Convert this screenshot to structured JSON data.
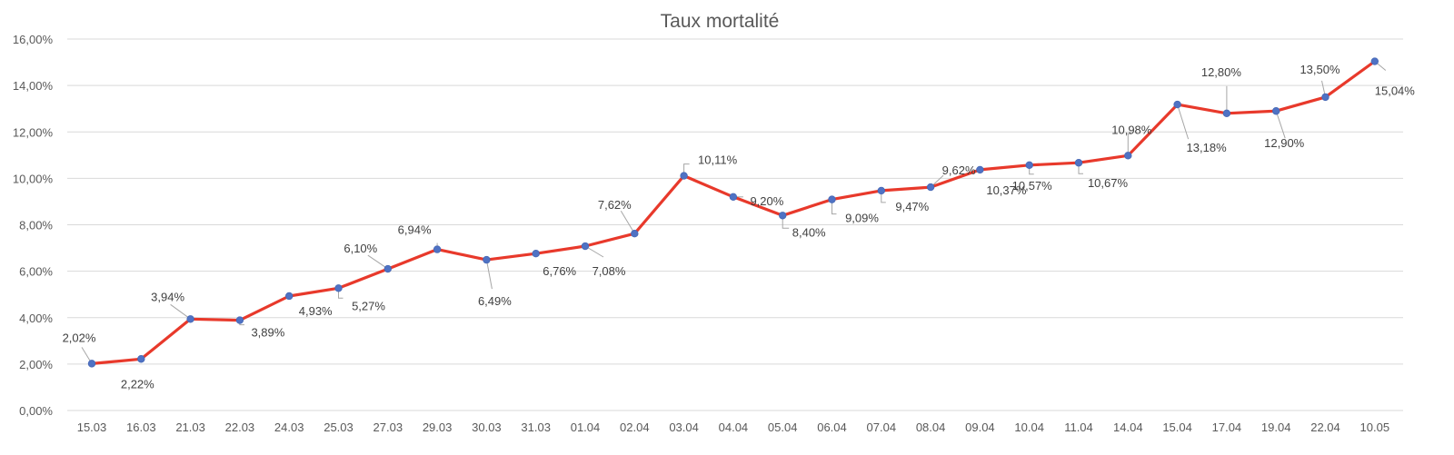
{
  "chart_data": {
    "type": "line",
    "title": "Taux mortalité",
    "xlabel": "",
    "ylabel": "",
    "categories": [
      "15.03",
      "16.03",
      "21.03",
      "22.03",
      "24.03",
      "25.03",
      "27.03",
      "29.03",
      "30.03",
      "31.03",
      "01.04",
      "02.04",
      "03.04",
      "04.04",
      "05.04",
      "06.04",
      "07.04",
      "08.04",
      "09.04",
      "10.04",
      "11.04",
      "14.04",
      "15.04",
      "17.04",
      "19.04",
      "22.04",
      "10.05"
    ],
    "values": [
      2.02,
      2.22,
      3.94,
      3.89,
      4.93,
      5.27,
      6.1,
      6.94,
      6.49,
      6.76,
      7.08,
      7.62,
      10.11,
      9.2,
      8.4,
      9.09,
      9.47,
      9.62,
      10.37,
      10.57,
      10.67,
      10.98,
      13.18,
      12.8,
      12.9,
      13.5,
      15.04
    ],
    "data_labels": [
      "2,02%",
      "2,22%",
      "3,94%",
      "3,89%",
      "4,93%",
      "5,27%",
      "6,10%",
      "6,94%",
      "6,49%",
      "6,76%",
      "7,08%",
      "7,62%",
      "10,11%",
      "9,20%",
      "8,40%",
      "9,09%",
      "9,47%",
      "9,62%",
      "10,37%",
      "10,57%",
      "10,67%",
      "10,98%",
      "13,18%",
      "12,80%",
      "12,90%",
      "13,50%",
      "15,04%"
    ],
    "y_ticks": [
      0,
      2,
      4,
      6,
      8,
      10,
      12,
      14,
      16
    ],
    "y_tick_labels": [
      "0,00%",
      "2,00%",
      "4,00%",
      "6,00%",
      "8,00%",
      "10,00%",
      "12,00%",
      "14,00%",
      "16,00%"
    ],
    "ylim": [
      0,
      16
    ],
    "grid": true,
    "legend": "none",
    "colors": {
      "line": "#e8392b",
      "marker": "#4f72c4",
      "grid": "#d9d9d9",
      "leader": "#a6a6a6"
    }
  }
}
